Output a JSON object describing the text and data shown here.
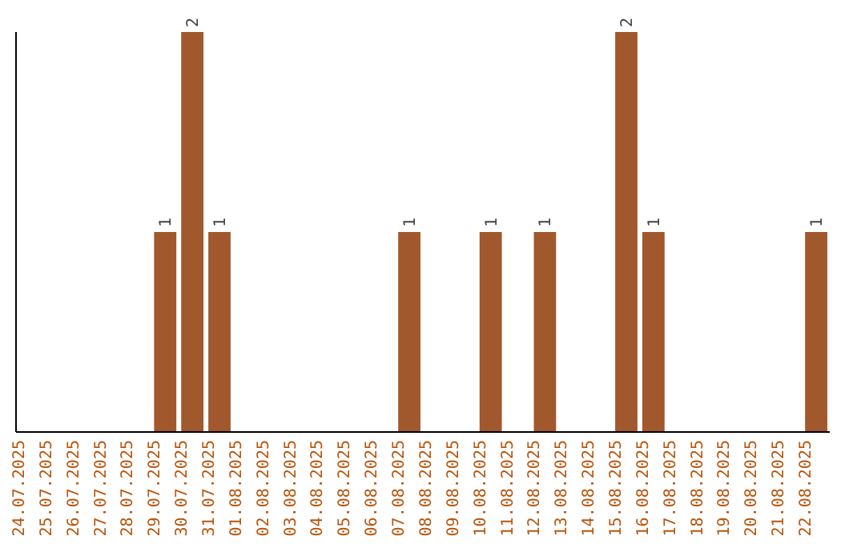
{
  "chart_data": {
    "type": "bar",
    "categories": [
      "24.07.2025",
      "25.07.2025",
      "26.07.2025",
      "27.07.2025",
      "28.07.2025",
      "29.07.2025",
      "30.07.2025",
      "31.07.2025",
      "01.08.2025",
      "02.08.2025",
      "03.08.2025",
      "04.08.2025",
      "05.08.2025",
      "06.08.2025",
      "07.08.2025",
      "08.08.2025",
      "09.08.2025",
      "10.08.2025",
      "11.08.2025",
      "12.08.2025",
      "13.08.2025",
      "14.08.2025",
      "15.08.2025",
      "16.08.2025",
      "17.08.2025",
      "18.08.2025",
      "19.08.2025",
      "20.08.2025",
      "21.08.2025",
      "22.08.2025"
    ],
    "values": [
      0,
      0,
      0,
      0,
      0,
      1,
      2,
      1,
      0,
      0,
      0,
      0,
      0,
      0,
      1,
      0,
      0,
      1,
      0,
      1,
      0,
      0,
      2,
      1,
      0,
      0,
      0,
      0,
      0,
      1
    ],
    "value_labels": [
      null,
      null,
      null,
      null,
      null,
      "1",
      "2",
      "1",
      null,
      null,
      null,
      null,
      null,
      null,
      "1",
      null,
      null,
      "1",
      null,
      "1",
      null,
      null,
      "2",
      "1",
      null,
      null,
      null,
      null,
      null,
      "1"
    ],
    "color": "#a0582c",
    "ylim": [
      0,
      2
    ],
    "tick_labels": "x"
  }
}
